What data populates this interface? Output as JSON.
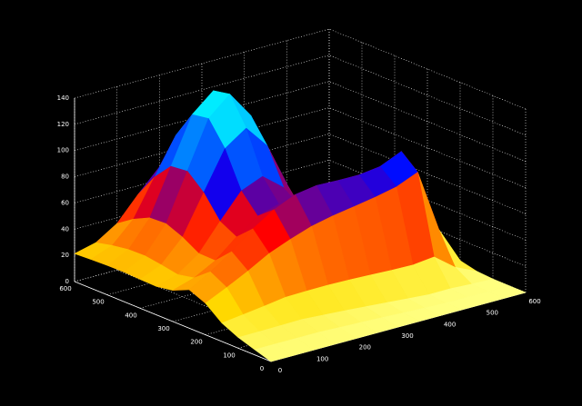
{
  "chart_data": {
    "type": "surface",
    "x": [
      0,
      50,
      100,
      150,
      200,
      250,
      300,
      350,
      400,
      450,
      500,
      550,
      600
    ],
    "y": [
      0,
      50,
      100,
      150,
      200,
      250,
      300,
      350,
      400,
      450,
      500,
      550,
      600
    ],
    "z": [
      [
        0,
        0,
        0,
        0,
        0,
        0,
        0,
        0,
        0,
        0,
        0,
        0,
        0
      ],
      [
        4,
        4,
        4,
        4,
        3.3,
        2.7,
        2.1,
        1.3,
        0.7,
        0,
        0,
        0,
        0
      ],
      [
        8.2,
        8.3,
        8.5,
        8.8,
        7.7,
        6.6,
        5.3,
        4.0,
        2.7,
        1.4,
        1.5,
        0.6,
        0.1
      ],
      [
        14.1,
        16.1,
        18.2,
        20.6,
        21.0,
        21.1,
        20.7,
        20.0,
        19.3,
        18.9,
        20.6,
        8.3,
        1.0
      ],
      [
        24.1,
        31.7,
        39.9,
        48.9,
        55.3,
        60.9,
        64.5,
        67.1,
        69.9,
        73.4,
        80.2,
        32.0,
        4.0
      ],
      [
        29.4,
        38.6,
        49.6,
        62.6,
        72.9,
        80.0,
        82.5,
        81.9,
        81.8,
        83.8,
        91.0,
        36.3,
        4.5
      ],
      [
        23.8,
        28.9,
        37.7,
        51.4,
        62.9,
        67.6,
        61.6,
        48.9,
        37.1,
        30.3,
        30.6,
        12.1,
        1.5
      ],
      [
        21.7,
        26.4,
        38.0,
        58.1,
        77.0,
        83.7,
        70.8,
        45.8,
        22.8,
        8.4,
        4.2,
        1.4,
        0.1
      ],
      [
        22.1,
        28.7,
        45.4,
        75.0,
        104.2,
        115.4,
        97.5,
        61.7,
        28.7,
        8.8,
        2.2,
        0.4,
        0.1
      ],
      [
        22.6,
        30.5,
        50.6,
        86.3,
        122.1,
        136.3,
        115.4,
        73.0,
        33.9,
        10.5,
        2.6,
        0.5,
        0.1
      ],
      [
        22.5,
        30.2,
        50.0,
        84.9,
        120.0,
        133.8,
        113.3,
        71.6,
        33.3,
        10.2,
        2.5,
        0.5,
        0.1
      ],
      [
        22.0,
        28.2,
        43.9,
        71.7,
        99.0,
        109.3,
        92.3,
        58.4,
        27.2,
        8.2,
        2.0,
        0.4,
        0.1
      ],
      [
        21.3,
        25.3,
        35.5,
        53.5,
        69.9,
        75.4,
        63.2,
        40.2,
        18.8,
        5.3,
        1.3,
        0.2,
        0.0
      ]
    ],
    "xlim": [
      0,
      600
    ],
    "ylim": [
      0,
      600
    ],
    "zlim": [
      0,
      140
    ],
    "xticks": [
      0,
      100,
      200,
      300,
      400,
      500,
      600
    ],
    "yticks": [
      0,
      100,
      200,
      300,
      400,
      500,
      600
    ],
    "zticks": [
      0,
      20,
      40,
      60,
      80,
      100,
      120,
      140
    ],
    "grid": true,
    "colormap": [
      "#ffff80",
      "#ffe000",
      "#ff7000",
      "#ff0000",
      "#0000ff",
      "#0070ff",
      "#00e0ff",
      "#00ffff"
    ]
  }
}
